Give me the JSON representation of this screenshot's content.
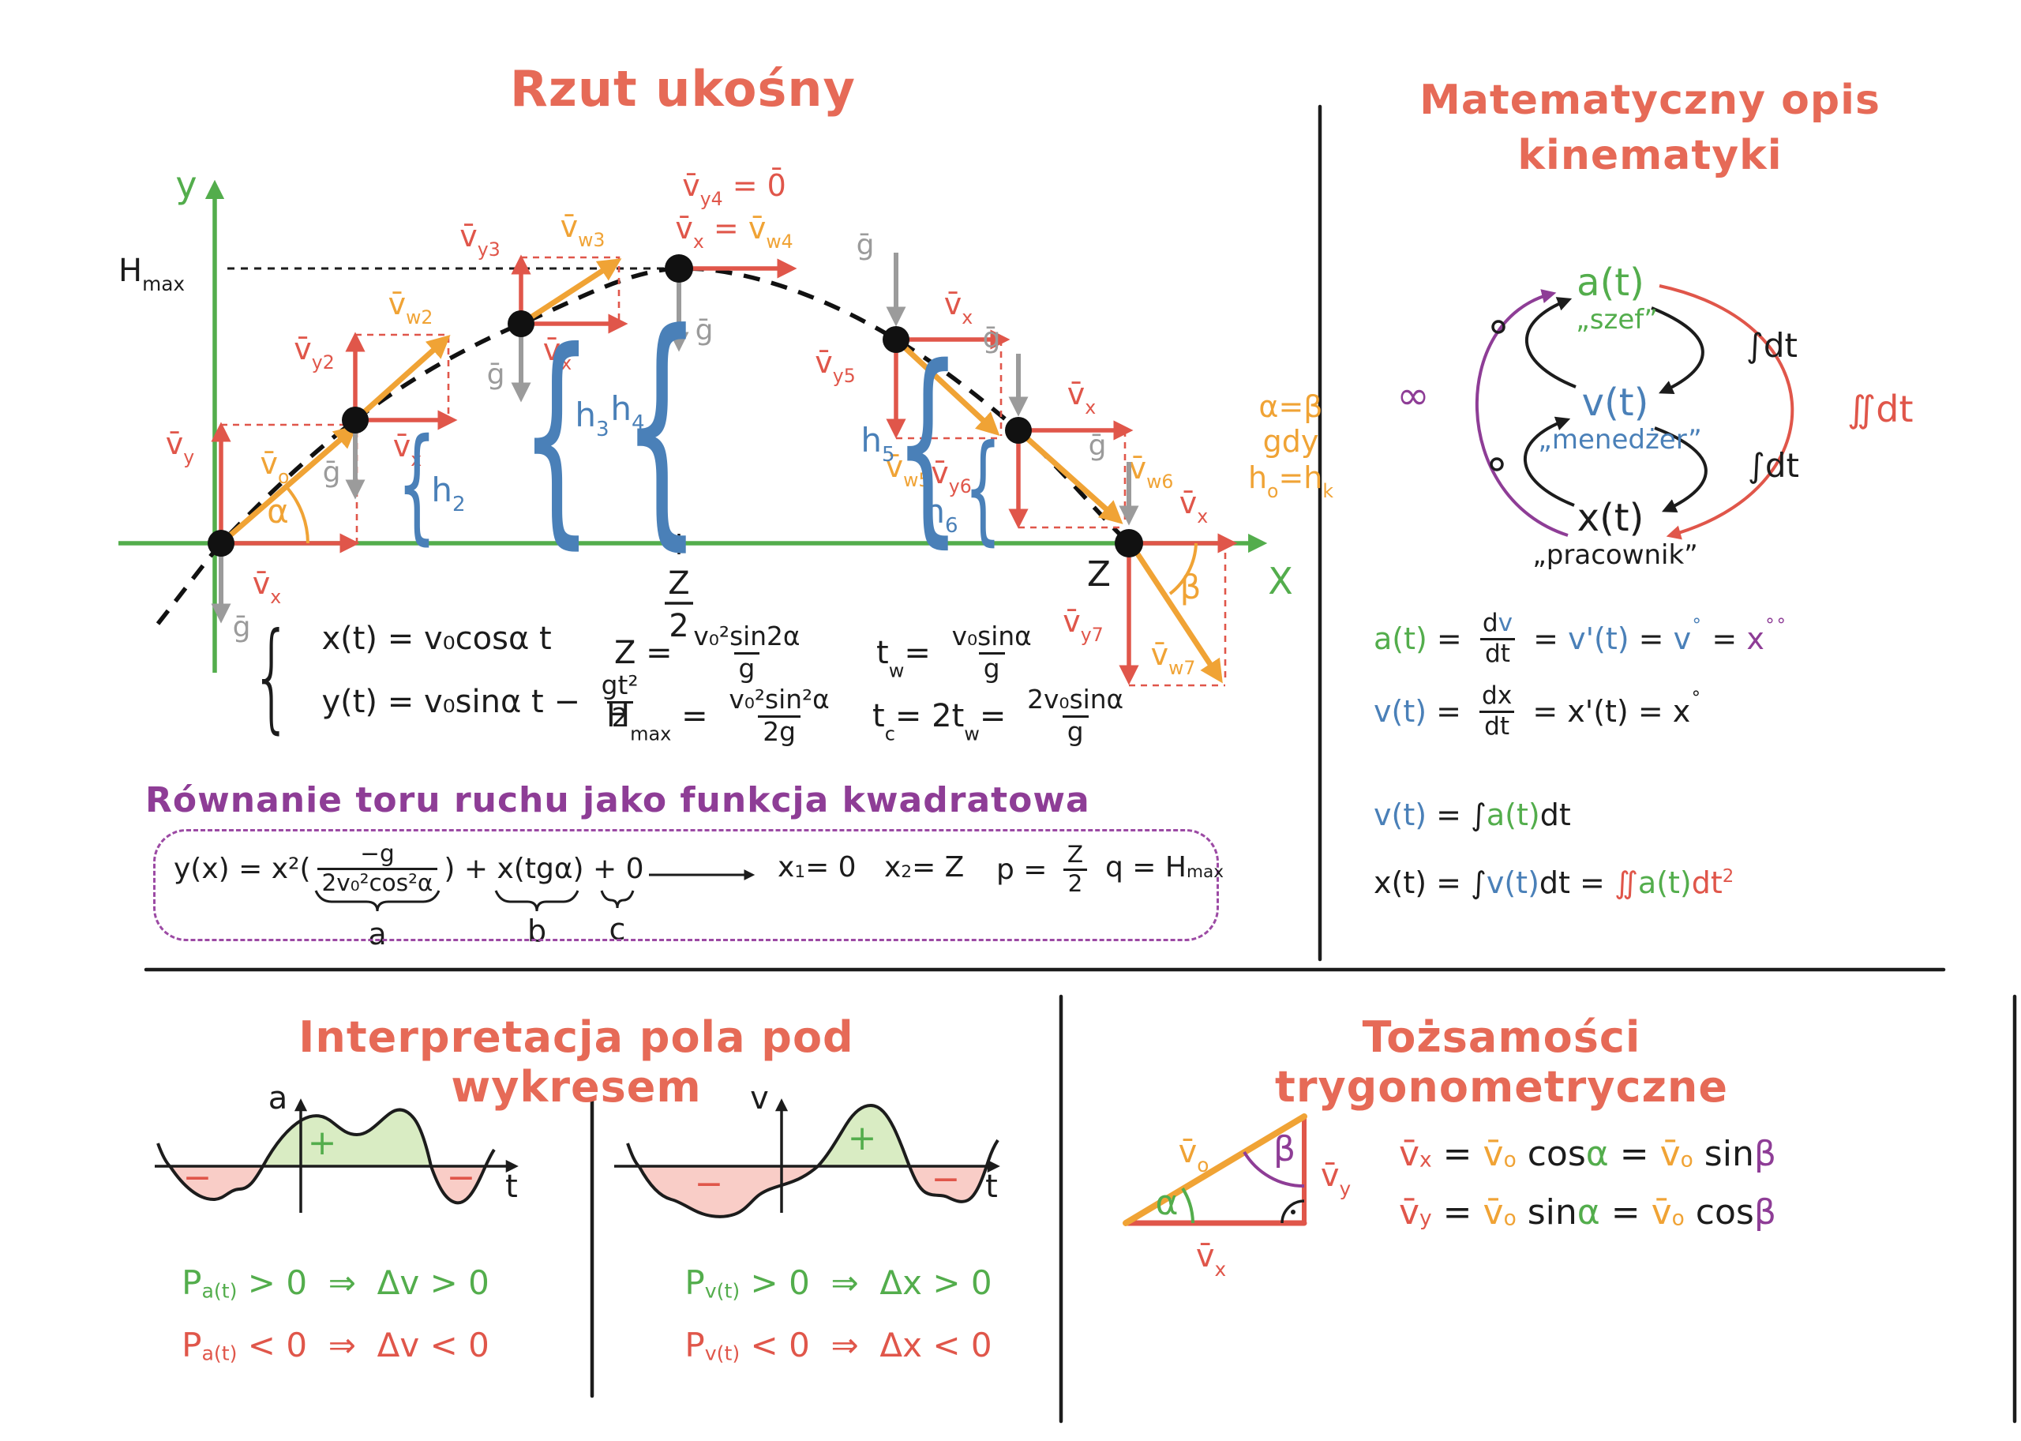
{
  "colors": {
    "salmon": "#e0564a",
    "orange": "#f0a335",
    "green": "#53ad4c",
    "blue": "#4a80b8",
    "purple": "#8e3d96",
    "gray": "#9b9b9b",
    "black": "#1c1c1c",
    "fill_green": "#d9ecc3",
    "fill_pink": "#f9cdc7",
    "title": "#e66a57"
  },
  "traj": {
    "title": "Rzut ukośny",
    "labels": {
      "y_axis": "y",
      "x_axis": "X",
      "hmax": [
        {
          "t": "H"
        },
        {
          "t": "max",
          "pos": "sub"
        }
      ],
      "vx": [
        {
          "t": "v̄"
        },
        {
          "t": "x",
          "pos": "sub"
        }
      ],
      "g": "ḡ",
      "alpha": "α",
      "beta": "β",
      "z": "Z",
      "z2num": "Z",
      "z2den": "2",
      "p1_vy": [
        {
          "t": "v̄"
        },
        {
          "t": "y",
          "pos": "sub"
        }
      ],
      "p1_vo": [
        {
          "t": "v̄"
        },
        {
          "t": "o",
          "pos": "sub"
        }
      ],
      "p2_vy": [
        {
          "t": "v̄"
        },
        {
          "t": "y2",
          "pos": "sub"
        }
      ],
      "p2_vw": [
        {
          "t": "v̄"
        },
        {
          "t": "w2",
          "pos": "sub"
        }
      ],
      "p3_vy": [
        {
          "t": "v̄"
        },
        {
          "t": "y3",
          "pos": "sub"
        }
      ],
      "p3_vw": [
        {
          "t": "v̄"
        },
        {
          "t": "w3",
          "pos": "sub"
        }
      ],
      "p4_vy0": [
        {
          "t": "v̄"
        },
        {
          "t": "y4",
          "pos": "sub"
        },
        {
          "t": " = 0̄"
        }
      ],
      "p4_vxw": [
        {
          "t": "v̄",
          "c": "salmon"
        },
        {
          "t": "x",
          "pos": "sub",
          "c": "salmon"
        },
        {
          "t": " = ",
          "c": "salmon"
        },
        {
          "t": "v̄",
          "c": "orange"
        },
        {
          "t": "w4",
          "pos": "sub",
          "c": "orange"
        }
      ],
      "p5_vy": [
        {
          "t": "v̄"
        },
        {
          "t": "y5",
          "pos": "sub"
        }
      ],
      "p5_vw": [
        {
          "t": "v̄"
        },
        {
          "t": "w5",
          "pos": "sub"
        }
      ],
      "p6_vy": [
        {
          "t": "v̄"
        },
        {
          "t": "y6",
          "pos": "sub"
        }
      ],
      "p6_vw": [
        {
          "t": "v̄"
        },
        {
          "t": "w6",
          "pos": "sub"
        }
      ],
      "p7_vy": [
        {
          "t": "v̄"
        },
        {
          "t": "y7",
          "pos": "sub"
        }
      ],
      "p7_vw": [
        {
          "t": "v̄"
        },
        {
          "t": "w7",
          "pos": "sub"
        }
      ],
      "h2": [
        {
          "t": "h"
        },
        {
          "t": "2",
          "pos": "sub"
        }
      ],
      "h3": [
        {
          "t": "h"
        },
        {
          "t": "3",
          "pos": "sub"
        }
      ],
      "h4": [
        {
          "t": "h"
        },
        {
          "t": "4",
          "pos": "sub"
        }
      ],
      "h5": [
        {
          "t": "h"
        },
        {
          "t": "5",
          "pos": "sub"
        }
      ],
      "h6": [
        {
          "t": "h"
        },
        {
          "t": "6",
          "pos": "sub"
        }
      ],
      "ab1": "α=β",
      "ab2": "gdy",
      "ab3": [
        {
          "t": "h"
        },
        {
          "t": "o",
          "pos": "sub"
        },
        {
          "t": "=h"
        },
        {
          "t": "k",
          "pos": "sub"
        }
      ]
    },
    "equations": {
      "sys_x": [
        {
          "t": "x(t) = v₀cosα t"
        }
      ],
      "sys_y": [
        {
          "t": "y(t) = v₀sinα t − "
        },
        {
          "frac": {
            "n": [
              {
                "t": "gt²"
              }
            ],
            "d": [
              {
                "t": "2"
              }
            ]
          }
        }
      ],
      "z": [
        {
          "t": "Z = "
        },
        {
          "frac": {
            "n": [
              {
                "t": "v₀²sin2α"
              }
            ],
            "d": [
              {
                "t": "g"
              }
            ]
          }
        }
      ],
      "hmax": [
        {
          "t": "H"
        },
        {
          "t": "max",
          "pos": "sub"
        },
        {
          "t": " = "
        },
        {
          "frac": {
            "n": [
              {
                "t": "v₀²sin²α"
              }
            ],
            "d": [
              {
                "t": "2g"
              }
            ]
          }
        }
      ],
      "tw": [
        {
          "t": "t"
        },
        {
          "t": "w",
          "pos": "sub"
        },
        {
          "t": "= "
        },
        {
          "frac": {
            "n": [
              {
                "t": "v₀sinα"
              }
            ],
            "d": [
              {
                "t": "g"
              }
            ]
          }
        }
      ],
      "tc": [
        {
          "t": "t"
        },
        {
          "t": "c",
          "pos": "sub"
        },
        {
          "t": "= 2t"
        },
        {
          "t": "w",
          "pos": "sub"
        },
        {
          "t": "= "
        },
        {
          "frac": {
            "n": [
              {
                "t": "2v₀sinα"
              }
            ],
            "d": [
              {
                "t": "g"
              }
            ]
          }
        }
      ]
    }
  },
  "quad": {
    "heading": "Równanie toru ruchu jako funkcja kwadratowa",
    "expr": [
      {
        "t": "y(x) = x²("
      },
      {
        "frac": {
          "n": [
            {
              "t": "−g"
            }
          ],
          "d": [
            {
              "t": "2v₀²cos²α"
            }
          ]
        }
      },
      {
        "t": ") + x(tgα) + 0"
      }
    ],
    "brace_a": "a",
    "brace_b": "b",
    "brace_c": "c",
    "x1": [
      {
        "t": "x"
      },
      {
        "t": "1",
        "pos": "sub"
      },
      {
        "t": "= 0"
      }
    ],
    "x2": [
      {
        "t": "x"
      },
      {
        "t": "2",
        "pos": "sub"
      },
      {
        "t": "= Z"
      }
    ],
    "p": [
      {
        "t": "p = "
      },
      {
        "frac": {
          "n": [
            {
              "t": "Z"
            }
          ],
          "d": [
            {
              "t": "2"
            }
          ]
        }
      }
    ],
    "q": [
      {
        "t": "q = H"
      },
      {
        "t": "max",
        "pos": "sub"
      }
    ]
  },
  "kin": {
    "title_line1": "Matematyczny opis",
    "title_line2": "kinematyki",
    "nodes": [
      {
        "f": "a(t)",
        "nick": "„szef”"
      },
      {
        "f": "v(t)",
        "nick": "„menedżer”"
      },
      {
        "f": "x(t)",
        "nick": "„pracownik”"
      }
    ],
    "int": "∫dt",
    "iint": "∬dt",
    "inf": "∞",
    "rows": {
      "r1": [
        {
          "t": "a(t)",
          "c": "green"
        },
        {
          "t": " = "
        },
        {
          "frac": {
            "n": [
              {
                "t": "d"
              },
              {
                "t": "v",
                "c": "blue"
              }
            ],
            "d": [
              {
                "t": "dt"
              }
            ]
          }
        },
        {
          "t": " = "
        },
        {
          "t": "v'(t)",
          "c": "blue"
        },
        {
          "t": " = "
        },
        {
          "t": "v",
          "c": "blue"
        },
        {
          "t": "∘",
          "pos": "sup",
          "c": "blue"
        },
        {
          "t": " = "
        },
        {
          "t": "x",
          "c": "purple"
        },
        {
          "t": "∘∘",
          "pos": "sup",
          "c": "purple"
        }
      ],
      "r2": [
        {
          "t": "v(t)",
          "c": "blue"
        },
        {
          "t": " = "
        },
        {
          "frac": {
            "n": [
              {
                "t": "dx"
              }
            ],
            "d": [
              {
                "t": "dt"
              }
            ]
          }
        },
        {
          "t": " = x'(t) = x"
        },
        {
          "t": "∘",
          "pos": "sup"
        }
      ],
      "r3": [
        {
          "t": "v(t)",
          "c": "blue"
        },
        {
          "t": " = "
        },
        {
          "t": "∫"
        },
        {
          "t": "a(t)",
          "c": "green"
        },
        {
          "t": "dt"
        }
      ],
      "r4": [
        {
          "t": "x(t) = "
        },
        {
          "t": "∫"
        },
        {
          "t": "v(t)",
          "c": "blue"
        },
        {
          "t": "dt = "
        },
        {
          "t": "∬",
          "c": "salmon"
        },
        {
          "t": "a(t)",
          "c": "green"
        },
        {
          "t": "dt",
          "c": "salmon"
        },
        {
          "t": "2",
          "pos": "sup",
          "c": "salmon"
        }
      ]
    }
  },
  "area": {
    "title": "Interpretacja pola pod wykresem",
    "graph_a": {
      "ylabel": "a",
      "xlabel": "t",
      "plus": "+",
      "minus": "−"
    },
    "graph_v": {
      "ylabel": "v",
      "xlabel": "t",
      "plus": "+",
      "minus": "−"
    },
    "cond_a_pos": [
      {
        "t": "P"
      },
      {
        "t": "a(t)",
        "pos": "sub"
      },
      {
        "t": " > 0  ⇒  Δv > 0"
      }
    ],
    "cond_a_neg": [
      {
        "t": "P"
      },
      {
        "t": "a(t)",
        "pos": "sub"
      },
      {
        "t": " < 0  ⇒  Δv < 0"
      }
    ],
    "cond_v_pos": [
      {
        "t": "P"
      },
      {
        "t": "v(t)",
        "pos": "sub"
      },
      {
        "t": " > 0  ⇒  Δx > 0"
      }
    ],
    "cond_v_neg": [
      {
        "t": "P"
      },
      {
        "t": "v(t)",
        "pos": "sub"
      },
      {
        "t": " < 0  ⇒  Δx < 0"
      }
    ]
  },
  "trig": {
    "title": "Tożsamości trygonometryczne",
    "tri": {
      "vo": [
        {
          "t": "v̄"
        },
        {
          "t": "o",
          "pos": "sub"
        }
      ],
      "vy": [
        {
          "t": "v̄"
        },
        {
          "t": "y",
          "pos": "sub"
        }
      ],
      "vx": [
        {
          "t": "v̄"
        },
        {
          "t": "x",
          "pos": "sub"
        }
      ],
      "alpha": "α",
      "beta": "β"
    },
    "eq1": [
      {
        "t": "v̄",
        "c": "salmon"
      },
      {
        "t": "x",
        "pos": "sub",
        "c": "salmon"
      },
      {
        "t": " = "
      },
      {
        "t": "v̄",
        "c": "orange"
      },
      {
        "t": "o",
        "pos": "sub",
        "c": "orange"
      },
      {
        "t": " cos"
      },
      {
        "t": "α",
        "c": "green"
      },
      {
        "t": " = "
      },
      {
        "t": "v̄",
        "c": "orange"
      },
      {
        "t": "o",
        "pos": "sub",
        "c": "orange"
      },
      {
        "t": " sin"
      },
      {
        "t": "β",
        "c": "purple"
      }
    ],
    "eq2": [
      {
        "t": "v̄",
        "c": "salmon"
      },
      {
        "t": "y",
        "pos": "sub",
        "c": "salmon"
      },
      {
        "t": " = "
      },
      {
        "t": "v̄",
        "c": "orange"
      },
      {
        "t": "o",
        "pos": "sub",
        "c": "orange"
      },
      {
        "t": " sin"
      },
      {
        "t": "α",
        "c": "green"
      },
      {
        "t": " = "
      },
      {
        "t": "v̄",
        "c": "orange"
      },
      {
        "t": "o",
        "pos": "sub",
        "c": "orange"
      },
      {
        "t": " cos"
      },
      {
        "t": "β",
        "c": "purple"
      }
    ]
  }
}
